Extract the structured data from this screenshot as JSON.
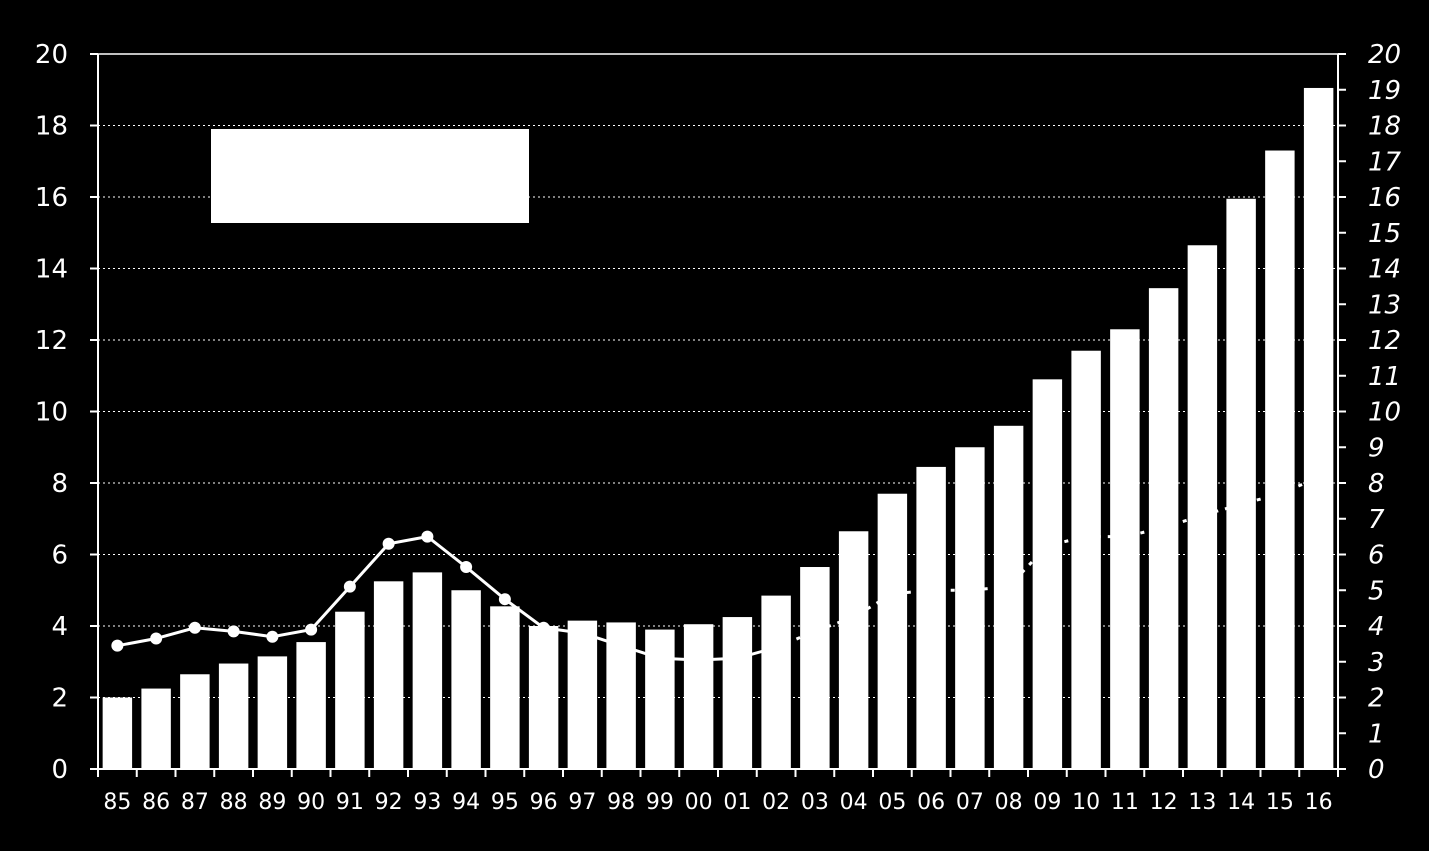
{
  "chart_data": {
    "type": "bar",
    "categories": [
      "85",
      "86",
      "87",
      "88",
      "89",
      "90",
      "91",
      "92",
      "93",
      "94",
      "95",
      "96",
      "97",
      "98",
      "99",
      "00",
      "01",
      "02",
      "03",
      "04",
      "05",
      "06",
      "07",
      "08",
      "09",
      "10",
      "11",
      "12",
      "13",
      "14",
      "15",
      "16"
    ],
    "series": [
      {
        "type": "bar",
        "axis": "left",
        "values": [
          2.0,
          2.25,
          2.65,
          2.95,
          3.15,
          3.55,
          4.4,
          5.25,
          5.5,
          5.0,
          4.55,
          4.0,
          4.15,
          4.1,
          3.9,
          4.05,
          4.25,
          4.85,
          5.65,
          6.65,
          7.7,
          8.45,
          9.0,
          9.6,
          10.9,
          11.7,
          12.3,
          13.45,
          14.65,
          15.95,
          17.3,
          19.05
        ]
      },
      {
        "type": "line",
        "axis": "right",
        "values": [
          3.45,
          3.65,
          3.95,
          3.85,
          3.7,
          3.9,
          5.1,
          6.3,
          6.5,
          5.65,
          4.75,
          3.95,
          3.8,
          3.45,
          3.1,
          3.05,
          3.1,
          3.4,
          3.85,
          4.25,
          4.9,
          5.0,
          5.0,
          5.1,
          6.25,
          6.5,
          6.5,
          6.75,
          7.1,
          7.4,
          7.7,
          8.15
        ]
      }
    ],
    "y_left": {
      "min": 0,
      "max": 20,
      "ticks": [
        0,
        2,
        4,
        6,
        8,
        10,
        12,
        14,
        16,
        18,
        20
      ]
    },
    "y_right": {
      "min": 0,
      "max": 20,
      "ticks": [
        0,
        1,
        2,
        3,
        4,
        5,
        6,
        7,
        8,
        9,
        10,
        11,
        12,
        13,
        14,
        15,
        16,
        17,
        18,
        19,
        20
      ]
    },
    "grid": "horizontal-dotted",
    "legend": "top-left (blank white box)",
    "colors": {
      "background": "#000000",
      "bars": "#ffffff",
      "line": "#ffffff",
      "grid": "#ffffff"
    }
  }
}
